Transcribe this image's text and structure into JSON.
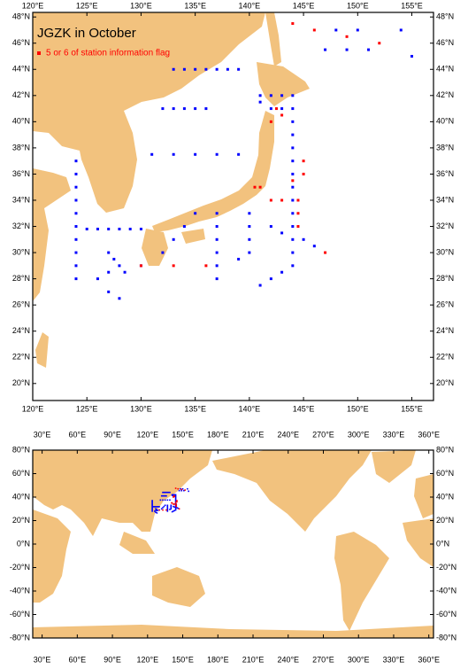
{
  "chart_data": [
    {
      "type": "map",
      "title": "JGZK in October",
      "legend": "upper left",
      "xlim": [
        120,
        157
      ],
      "ylim": [
        18.7,
        48.35
      ],
      "xticks": [
        {
          "value": 120,
          "label": "120°E"
        },
        {
          "value": 125,
          "label": "125°E"
        },
        {
          "value": 130,
          "label": "130°E"
        },
        {
          "value": 135,
          "label": "135°E"
        },
        {
          "value": 140,
          "label": "140°E"
        },
        {
          "value": 145,
          "label": "145°E"
        },
        {
          "value": 150,
          "label": "150°E"
        },
        {
          "value": 155,
          "label": "155°E"
        }
      ],
      "yticks": [
        {
          "value": 20,
          "label": "20°N"
        },
        {
          "value": 22,
          "label": "22°N"
        },
        {
          "value": 24,
          "label": "24°N"
        },
        {
          "value": 26,
          "label": "26°N"
        },
        {
          "value": 28,
          "label": "28°N"
        },
        {
          "value": 30,
          "label": "30°N"
        },
        {
          "value": 32,
          "label": "32°N"
        },
        {
          "value": 34,
          "label": "34°N"
        },
        {
          "value": 36,
          "label": "36°N"
        },
        {
          "value": 38,
          "label": "38°N"
        },
        {
          "value": 40,
          "label": "40°N"
        },
        {
          "value": 42,
          "label": "42°N"
        },
        {
          "value": 44,
          "label": "44°N"
        },
        {
          "value": 46,
          "label": "46°N"
        },
        {
          "value": 48,
          "label": "48°N"
        }
      ],
      "series": [
        {
          "color": "#0000ff",
          "x": [
            124,
            124,
            124,
            124,
            124,
            124,
            124,
            124,
            124,
            124,
            125,
            126,
            127,
            128,
            129,
            130,
            141,
            142,
            143,
            144,
            141,
            142,
            143,
            144,
            144,
            144,
            144,
            144,
            144,
            144,
            144,
            144,
            144,
            144,
            144,
            144,
            131,
            133,
            135,
            137,
            139,
            132,
            133,
            134,
            135,
            136,
            133,
            134,
            135,
            136,
            137,
            138,
            139,
            137,
            137,
            137,
            137,
            137,
            137,
            140,
            140,
            140,
            140,
            139,
            147,
            149,
            151,
            154,
            155,
            148,
            150,
            142,
            143,
            145,
            146,
            127,
            127.5,
            128,
            128.5,
            127,
            130,
            132,
            133,
            134,
            135,
            126,
            127,
            128,
            141,
            142,
            143
          ],
          "y": [
            37,
            36,
            35,
            34,
            33,
            32,
            31,
            30,
            29,
            28,
            31.8,
            31.8,
            31.8,
            31.8,
            31.8,
            31.8,
            42,
            42,
            42,
            42,
            41.5,
            41,
            41,
            41,
            40,
            39,
            38,
            37,
            36,
            35,
            34,
            33,
            32,
            31,
            30,
            29,
            37.5,
            37.5,
            37.5,
            37.5,
            37.5,
            41,
            41,
            41,
            41,
            41,
            44,
            44,
            44,
            44,
            44,
            44,
            44,
            33,
            32,
            31,
            30,
            29,
            28,
            33,
            32,
            31,
            30,
            29.5,
            45.5,
            45.5,
            45.5,
            47,
            45,
            47,
            47,
            32,
            31.5,
            31,
            30.5,
            30,
            29.5,
            29,
            28.5,
            28.5,
            29,
            30,
            31,
            32,
            33,
            28,
            27,
            26.5,
            27.5,
            28,
            28.5
          ]
        },
        {
          "name": "5 or 6 of station information flag",
          "color": "#ff0000",
          "x": [
            141,
            140.5,
            142,
            143,
            142.5,
            143,
            142,
            144,
            144.5,
            144.5,
            144.5,
            147,
            130,
            133,
            136,
            144,
            146,
            149,
            152,
            145,
            145
          ],
          "y": [
            35,
            35,
            34,
            34,
            41,
            40.5,
            40,
            35.5,
            34,
            33,
            32,
            30,
            29,
            29,
            29,
            47.5,
            47,
            46.5,
            46,
            37,
            36
          ]
        }
      ]
    },
    {
      "type": "map",
      "xlim": [
        22,
        364
      ],
      "ylim": [
        -80,
        80
      ],
      "xticks": [
        {
          "value": 30,
          "label": "30°E"
        },
        {
          "value": 60,
          "label": "60°E"
        },
        {
          "value": 90,
          "label": "90°E"
        },
        {
          "value": 120,
          "label": "120°E"
        },
        {
          "value": 150,
          "label": "150°E"
        },
        {
          "value": 180,
          "label": "180°E"
        },
        {
          "value": 210,
          "label": "210°E"
        },
        {
          "value": 240,
          "label": "240°E"
        },
        {
          "value": 270,
          "label": "270°E"
        },
        {
          "value": 300,
          "label": "300°E"
        },
        {
          "value": 330,
          "label": "330°E"
        },
        {
          "value": 360,
          "label": "360°E"
        }
      ],
      "yticks": [
        {
          "value": -80,
          "label": "-80°N"
        },
        {
          "value": -60,
          "label": "-60°N"
        },
        {
          "value": -40,
          "label": "-40°N"
        },
        {
          "value": -20,
          "label": "-20°N"
        },
        {
          "value": 0,
          "label": "0°N"
        },
        {
          "value": 20,
          "label": "20°N"
        },
        {
          "value": 40,
          "label": "40°N"
        },
        {
          "value": 60,
          "label": "60°N"
        },
        {
          "value": 80,
          "label": "80°N"
        }
      ]
    }
  ]
}
